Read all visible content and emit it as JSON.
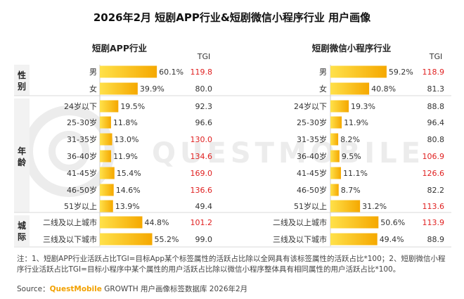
{
  "title": "2026年2月 短剧APP行业&短剧微信小程序行业 用户画像",
  "watermark": "QUESTMOBILE",
  "colors": {
    "bar_start": "#ffe14a",
    "bar_end": "#f5a800",
    "highlight": "#e02020",
    "normal": "#333333",
    "section_fill": "#f2f2f2",
    "watermark": "#ececec"
  },
  "chart_data": [
    {
      "type": "bar",
      "panel": "短剧APP行业",
      "tgi_header": "TGI",
      "groups": [
        {
          "label": "性别",
          "rows": [
            {
              "category": "男",
              "percent_label": "60.1%",
              "value": 60.1,
              "tgi": "119.8",
              "highlight": true
            },
            {
              "category": "女",
              "percent_label": "39.9%",
              "value": 39.9,
              "tgi": "80.0",
              "highlight": false
            }
          ]
        },
        {
          "label": "年龄",
          "rows": [
            {
              "category": "24岁以下",
              "percent_label": "19.5%",
              "value": 19.5,
              "tgi": "92.3",
              "highlight": false
            },
            {
              "category": "25-30岁",
              "percent_label": "11.8%",
              "value": 11.8,
              "tgi": "96.6",
              "highlight": false
            },
            {
              "category": "31-35岁",
              "percent_label": "13.0%",
              "value": 13.0,
              "tgi": "130.0",
              "highlight": true
            },
            {
              "category": "36-40岁",
              "percent_label": "11.9%",
              "value": 11.9,
              "tgi": "134.6",
              "highlight": true
            },
            {
              "category": "41-45岁",
              "percent_label": "15.4%",
              "value": 15.4,
              "tgi": "169.0",
              "highlight": true
            },
            {
              "category": "46-50岁",
              "percent_label": "14.6%",
              "value": 14.6,
              "tgi": "136.6",
              "highlight": true
            },
            {
              "category": "51岁以上",
              "percent_label": "13.9%",
              "value": 13.9,
              "tgi": "49.4",
              "highlight": false
            }
          ]
        },
        {
          "label": "城际",
          "rows": [
            {
              "category": "二线及以上城市",
              "percent_label": "44.8%",
              "value": 44.8,
              "tgi": "101.2",
              "highlight": true
            },
            {
              "category": "三线及以下城市",
              "percent_label": "55.2%",
              "value": 55.2,
              "tgi": "99.0",
              "highlight": false
            }
          ]
        }
      ]
    },
    {
      "type": "bar",
      "panel": "短剧微信小程序行业",
      "tgi_header": "TGI",
      "groups": [
        {
          "label": "性别",
          "rows": [
            {
              "category": "男",
              "percent_label": "59.2%",
              "value": 59.2,
              "tgi": "118.9",
              "highlight": true
            },
            {
              "category": "女",
              "percent_label": "40.8%",
              "value": 40.8,
              "tgi": "81.3",
              "highlight": false
            }
          ]
        },
        {
          "label": "年龄",
          "rows": [
            {
              "category": "24岁以下",
              "percent_label": "19.3%",
              "value": 19.3,
              "tgi": "88.8",
              "highlight": false
            },
            {
              "category": "25-30岁",
              "percent_label": "11.9%",
              "value": 11.9,
              "tgi": "96.4",
              "highlight": false
            },
            {
              "category": "31-35岁",
              "percent_label": "8.2%",
              "value": 8.2,
              "tgi": "80.8",
              "highlight": false
            },
            {
              "category": "36-40岁",
              "percent_label": "9.5%",
              "value": 9.5,
              "tgi": "106.9",
              "highlight": true
            },
            {
              "category": "41-45岁",
              "percent_label": "11.1%",
              "value": 11.1,
              "tgi": "126.6",
              "highlight": true
            },
            {
              "category": "46-50岁",
              "percent_label": "8.7%",
              "value": 8.7,
              "tgi": "82.2",
              "highlight": false
            },
            {
              "category": "51岁以上",
              "percent_label": "31.2%",
              "value": 31.2,
              "tgi": "113.6",
              "highlight": true
            }
          ]
        },
        {
          "label": "城际",
          "rows": [
            {
              "category": "二线及以上城市",
              "percent_label": "50.6%",
              "value": 50.6,
              "tgi": "113.9",
              "highlight": true
            },
            {
              "category": "三线及以下城市",
              "percent_label": "49.4%",
              "value": 49.4,
              "tgi": "88.9",
              "highlight": false
            }
          ]
        }
      ]
    }
  ],
  "notes": "注：1、短剧APP行业活跃占比TGI=目标App某个标签属性的活跃占比除以全网具有该标签属性的活跃占比*100；2、短剧微信小程序行业活跃占比TGI=目标小程序中某个属性的用户活跃占比除以微信小程序整体具有相同属性的用户活跃占比*100。",
  "source": {
    "prefix": "Source：",
    "brand": "QuestMobile",
    "suffix": "GROWTH 用户画像标签数据库 2026年2月"
  }
}
